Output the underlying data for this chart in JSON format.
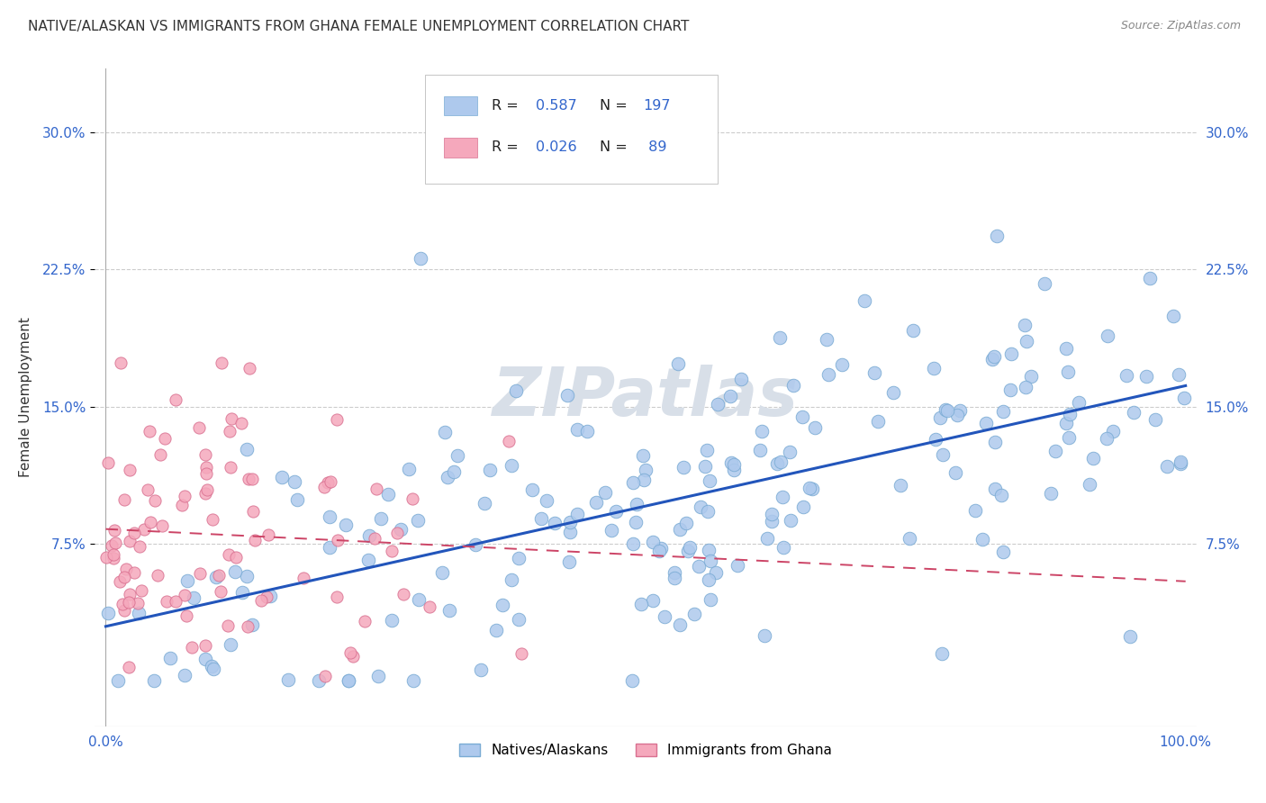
{
  "title": "NATIVE/ALASKAN VS IMMIGRANTS FROM GHANA FEMALE UNEMPLOYMENT CORRELATION CHART",
  "source": "Source: ZipAtlas.com",
  "ylabel": "Female Unemployment",
  "xlim": [
    -0.01,
    1.01
  ],
  "ylim": [
    -0.025,
    0.335
  ],
  "yticks": [
    0.075,
    0.15,
    0.225,
    0.3
  ],
  "ytick_labels": [
    "7.5%",
    "15.0%",
    "22.5%",
    "30.0%"
  ],
  "xtick_labels": [
    "0.0%",
    "100.0%"
  ],
  "xtick_pos": [
    0.0,
    1.0
  ],
  "series1_label": "Natives/Alaskans",
  "series1_color": "#aec9ed",
  "series1_edge": "#7aabd4",
  "series1_R": 0.587,
  "series1_N": 197,
  "series2_label": "Immigrants from Ghana",
  "series2_color": "#f5a8bc",
  "series2_edge": "#d97090",
  "series2_R": 0.026,
  "series2_N": 89,
  "trend1_color": "#2255bb",
  "trend2_color": "#cc4466",
  "background_color": "#ffffff",
  "grid_color": "#cccccc",
  "watermark": "ZIPatlas",
  "watermark_color": "#d8dfe8",
  "title_fontsize": 11,
  "axis_label_fontsize": 11,
  "tick_fontsize": 11,
  "legend_color": "#3366cc",
  "legend_box_edge": "#bbbbbb"
}
